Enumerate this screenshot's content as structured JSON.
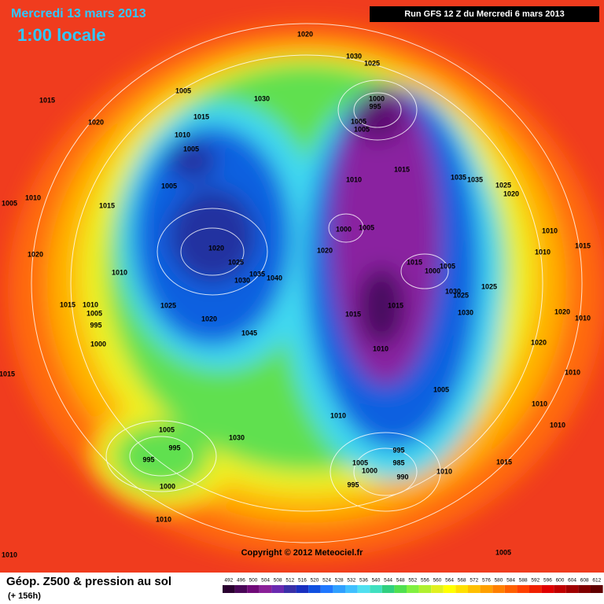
{
  "header": {
    "date": "Mercredi 13 mars 2013",
    "time": "1:00 locale",
    "run": "Run GFS 12 Z du Mercredi 6 mars 2013"
  },
  "footer": {
    "title": "Géop. Z500 & pression au sol",
    "lead": "(+ 156h)",
    "copyright": "Copyright © 2012 Meteociel.fr"
  },
  "colorbar": {
    "labels": [
      492,
      496,
      500,
      504,
      508,
      512,
      516,
      520,
      524,
      528,
      532,
      536,
      540,
      544,
      548,
      552,
      556,
      560,
      564,
      568,
      572,
      576,
      580,
      584,
      588,
      592,
      596,
      600,
      604,
      608,
      612
    ]
  },
  "pressure_labels": [
    "1020",
    "1030",
    "1025",
    "1015",
    "1020",
    "1005",
    "1015",
    "1030",
    "1000",
    "995",
    "1005",
    "1005",
    "1010",
    "1005",
    "1005",
    "1010",
    "1005",
    "1015",
    "1010",
    "1015",
    "1035",
    "1035",
    "1025",
    "1020",
    "1000",
    "1005",
    "1020",
    "1025",
    "1030",
    "1035",
    "1040",
    "1020",
    "1010",
    "1020",
    "1015",
    "1000",
    "1005",
    "1010",
    "1015",
    "1010",
    "1015",
    "1010",
    "1005",
    "995",
    "1025",
    "1020",
    "1045",
    "1015",
    "1015",
    "1030",
    "1025",
    "1030",
    "1025",
    "1020",
    "1010",
    "1000",
    "1020",
    "1010",
    "1015",
    "1010",
    "1005",
    "1010",
    "1010",
    "1010",
    "1005",
    "1030",
    "995",
    "995",
    "1000",
    "995",
    "985",
    "990",
    "1005",
    "1000",
    "995",
    "1010",
    "1015",
    "1010",
    "1010",
    "1005"
  ]
}
